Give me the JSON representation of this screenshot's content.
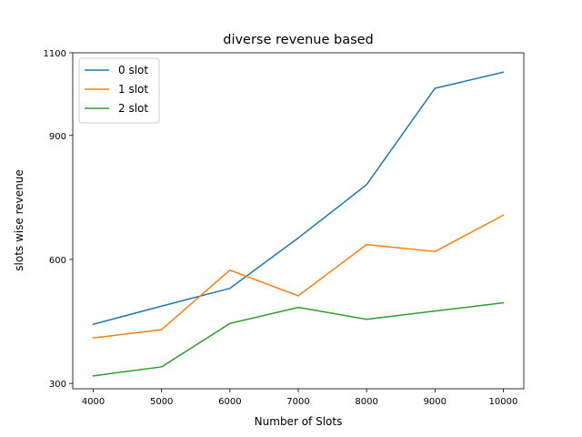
{
  "chart_data": {
    "type": "line",
    "title": "diverse revenue based",
    "xlabel": "Number of Slots",
    "ylabel": "slots wise revenue",
    "x": [
      4000,
      5000,
      6000,
      7000,
      8000,
      9000,
      10000
    ],
    "x_ticks": [
      "4000",
      "5000",
      "6000",
      "7000",
      "8000",
      "9000",
      "10000"
    ],
    "y_ticks": [
      "300",
      "600",
      "900",
      "1100"
    ],
    "y_tick_values": [
      300,
      600,
      900,
      1100
    ],
    "xlim": [
      3700,
      10300
    ],
    "ylim": [
      287,
      1100
    ],
    "grid": false,
    "legend_position": "top-left",
    "series": [
      {
        "name": "0 slot",
        "color": "#1f77b4",
        "values": [
          443,
          487,
          530,
          652,
          781,
          1014,
          1053
        ]
      },
      {
        "name": "1 slot",
        "color": "#ff7f0e",
        "values": [
          410,
          430,
          574,
          512,
          636,
          619,
          707
        ]
      },
      {
        "name": "2 slot",
        "color": "#2ca02c",
        "values": [
          318,
          340,
          445,
          484,
          455,
          475,
          495
        ]
      }
    ]
  }
}
